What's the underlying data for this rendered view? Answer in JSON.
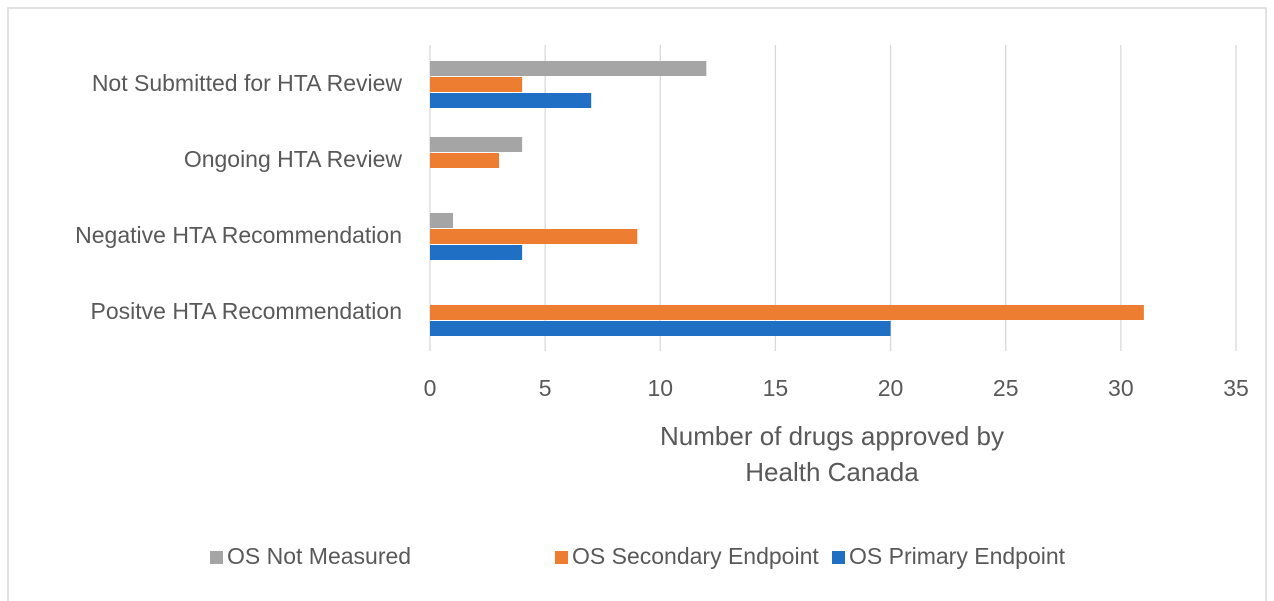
{
  "chart_data": {
    "type": "hbar",
    "categories": [
      "Not Submitted for HTA Review",
      "Ongoing HTA Review",
      "Negative HTA Recommendation",
      "Positve HTA Recommendation"
    ],
    "series": [
      {
        "name": "OS Not Measured",
        "color": "#a5a5a5",
        "values": [
          12,
          4,
          1,
          0
        ]
      },
      {
        "name": "OS Secondary Endpoint",
        "color": "#ed7d31",
        "values": [
          4,
          3,
          9,
          31
        ]
      },
      {
        "name": "OS Primary Endpoint",
        "color": "#1f6fc5",
        "values": [
          7,
          0,
          4,
          20
        ]
      }
    ],
    "x_label": [
      "Number of drugs approved by",
      "Health Canada"
    ],
    "xlim": [
      0,
      35
    ],
    "xticks": [
      0,
      5,
      10,
      15,
      20,
      25,
      30,
      35
    ],
    "grid": true,
    "legend": "bottom"
  }
}
